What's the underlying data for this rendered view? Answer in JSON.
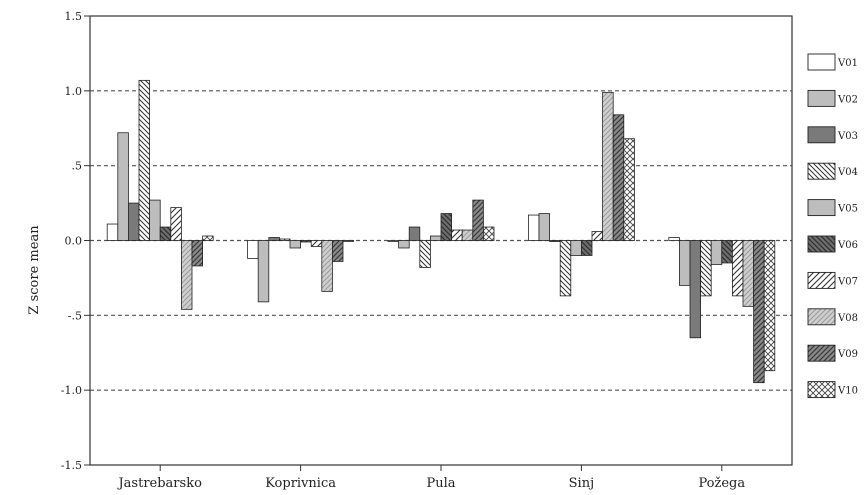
{
  "chart_data": {
    "type": "bar",
    "title": "",
    "xlabel": "",
    "ylabel": "Z score mean",
    "ylim": [
      -1.5,
      1.5
    ],
    "yticks": [
      1.5,
      1.0,
      0.5,
      0.0,
      -0.5,
      -1.0,
      -1.5
    ],
    "ytick_labels": [
      "1.5",
      "1.0",
      ".5",
      "0.0",
      "-.5",
      "-1.0",
      "-1.5"
    ],
    "grid": "horizontal dashed",
    "legend_position": "right",
    "categories": [
      "Jastrebarsko",
      "Koprivnica",
      "Pula",
      "Sinj",
      "Požega"
    ],
    "series": [
      {
        "name": "V01",
        "values": [
          0.11,
          -0.12,
          0.0,
          0.17,
          0.02
        ],
        "fill": "#ffffff",
        "pattern": "none"
      },
      {
        "name": "V02",
        "values": [
          0.72,
          -0.41,
          -0.05,
          0.18,
          -0.3
        ],
        "fill": "#bdbdbd",
        "pattern": "none"
      },
      {
        "name": "V03",
        "values": [
          0.25,
          0.02,
          0.09,
          0.0,
          -0.65
        ],
        "fill": "#7a7a7a",
        "pattern": "none"
      },
      {
        "name": "V04",
        "values": [
          1.07,
          0.01,
          -0.18,
          -0.37,
          -0.37
        ],
        "fill": "#ffffff",
        "pattern": "diag-back-dense"
      },
      {
        "name": "V05",
        "values": [
          0.27,
          -0.05,
          0.03,
          -0.1,
          -0.16
        ],
        "fill": "#bdbdbd",
        "pattern": "none"
      },
      {
        "name": "V06",
        "values": [
          0.09,
          -0.01,
          0.18,
          -0.1,
          -0.15
        ],
        "fill": "#6e6e6e",
        "pattern": "diag-back"
      },
      {
        "name": "V07",
        "values": [
          0.22,
          -0.04,
          0.07,
          0.06,
          -0.37
        ],
        "fill": "#ffffff",
        "pattern": "diag-fwd"
      },
      {
        "name": "V08",
        "values": [
          -0.46,
          -0.34,
          0.07,
          0.99,
          -0.44
        ],
        "fill": "#c9c9c9",
        "pattern": "diag-fwd-light"
      },
      {
        "name": "V09",
        "values": [
          -0.17,
          -0.14,
          0.27,
          0.84,
          -0.95
        ],
        "fill": "#8a8a8a",
        "pattern": "diag-fwd-dark"
      },
      {
        "name": "V10",
        "values": [
          0.03,
          0.0,
          0.09,
          0.68,
          -0.87
        ],
        "fill": "#ffffff",
        "pattern": "checker"
      }
    ]
  }
}
